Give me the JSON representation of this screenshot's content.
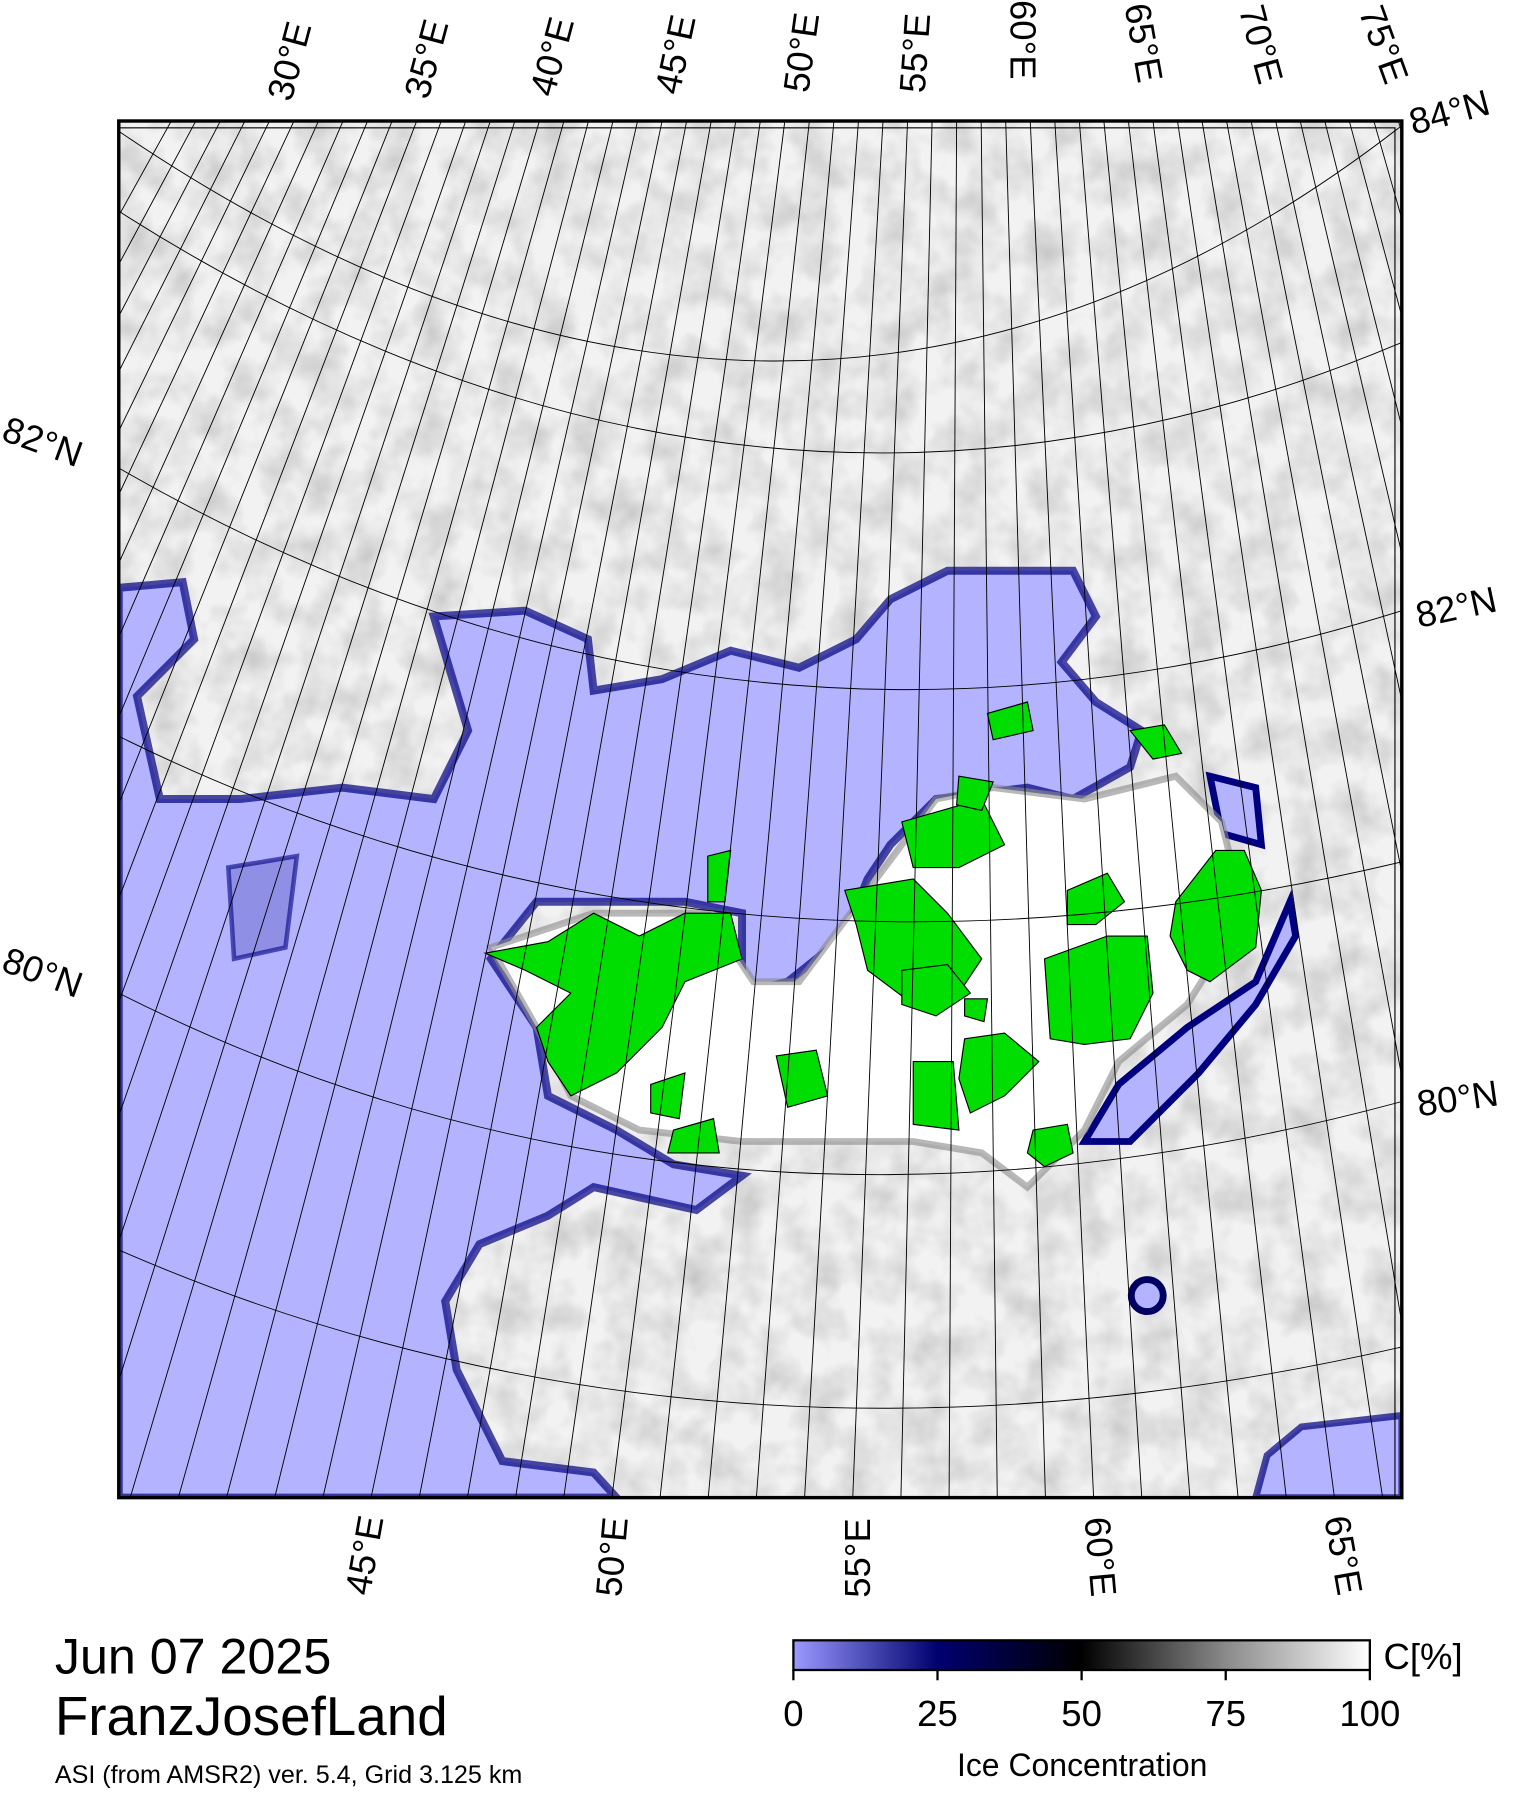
{
  "map": {
    "top_labels": [
      "30°E",
      "35°E",
      "40°E",
      "45°E",
      "50°E",
      "55°E",
      "60°E",
      "65°E",
      "70°E",
      "75°E"
    ],
    "bottom_labels": [
      "45°E",
      "50°E",
      "55°E",
      "60°E",
      "65°E"
    ],
    "lat_labels": {
      "top_right": "84°N",
      "left_upper": "82°N",
      "right_upper": "82°N",
      "left_lower": "80°N",
      "right_lower": "80°N"
    },
    "date": "Jun 07 2025",
    "region": "FranzJosefLand",
    "source": "ASI (from AMSR2) ver. 5.4,  Grid 3.125 km"
  },
  "colorbar": {
    "title": "Ice Concentration",
    "unit": "C[%]",
    "lim": [
      0,
      100
    ],
    "ticks": [
      0,
      25,
      50,
      75,
      100
    ]
  }
}
